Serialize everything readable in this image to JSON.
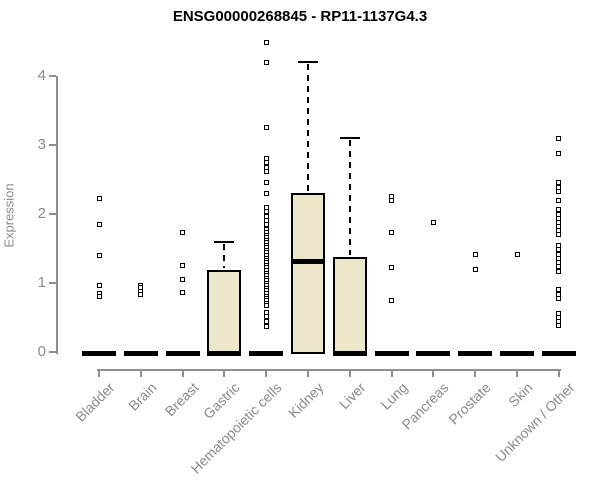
{
  "colors": {
    "background": "#ffffff",
    "box_fill": "#ece6cb",
    "box_border": "#000000",
    "data_ink": "#000000",
    "axis_line": "#8f8f8f",
    "axis_text": "#8a8a8a",
    "title_text": "#000000"
  },
  "chart_data": {
    "type": "boxplot",
    "title": "ENSG00000268845 - RP11-1137G4.3",
    "xlabel": "",
    "ylabel": "Expression",
    "ylim": [
      0,
      4
    ],
    "yticks": [
      0,
      1,
      2,
      3,
      4
    ],
    "grid": false,
    "legend_position": "none",
    "categories": [
      "Bladder",
      "Brain",
      "Breast",
      "Gastric",
      "Hematopoietic cells",
      "Kidney",
      "Liver",
      "Lung",
      "Pancreas",
      "Prostate",
      "Skin",
      "Unknown / Other"
    ],
    "boxes": [
      {
        "category": "Bladder",
        "q1": 0,
        "median": 0,
        "q3": 0,
        "whisker_low": 0,
        "whisker_high": 0,
        "outliers": [
          2.22,
          1.85,
          1.4,
          0.97,
          0.85,
          0.8
        ]
      },
      {
        "category": "Brain",
        "q1": 0,
        "median": 0,
        "q3": 0,
        "whisker_low": 0,
        "whisker_high": 0,
        "outliers": [
          0.97,
          0.93,
          0.88,
          0.84
        ]
      },
      {
        "category": "Breast",
        "q1": 0,
        "median": 0,
        "q3": 0,
        "whisker_low": 0,
        "whisker_high": 0,
        "outliers": [
          1.73,
          1.26,
          1.05,
          0.86
        ]
      },
      {
        "category": "Gastric",
        "q1": 0,
        "median": 0,
        "q3": 1.19,
        "whisker_low": 0,
        "whisker_high": 1.59,
        "outliers": []
      },
      {
        "category": "Hematopoietic cells",
        "q1": 0,
        "median": 0,
        "q3": 0,
        "whisker_low": 0,
        "whisker_high": 0,
        "outliers": [
          4.48,
          4.19,
          3.26,
          2.81,
          2.74,
          2.68,
          2.61,
          2.45,
          2.3,
          2.09,
          2.03,
          1.97,
          1.91,
          1.85,
          1.77,
          1.73,
          1.69,
          1.66,
          1.62,
          1.58,
          1.55,
          1.51,
          1.47,
          1.44,
          1.4,
          1.36,
          1.33,
          1.29,
          1.25,
          1.22,
          1.18,
          1.14,
          1.11,
          1.07,
          1.03,
          1.0,
          0.96,
          0.92,
          0.89,
          0.85,
          0.81,
          0.78,
          0.74,
          0.7,
          0.67,
          0.57,
          0.51,
          0.44,
          0.37
        ]
      },
      {
        "category": "Kidney",
        "q1": 0,
        "median": 1.33,
        "q3": 2.31,
        "whisker_low": 0,
        "whisker_high": 4.2,
        "outliers": []
      },
      {
        "category": "Liver",
        "q1": 0,
        "median": 0,
        "q3": 1.38,
        "whisker_low": 0,
        "whisker_high": 3.1,
        "outliers": []
      },
      {
        "category": "Lung",
        "q1": 0,
        "median": 0,
        "q3": 0,
        "whisker_low": 0,
        "whisker_high": 0,
        "outliers": [
          2.26,
          2.19,
          1.73,
          1.23,
          0.74
        ]
      },
      {
        "category": "Pancreas",
        "q1": 0,
        "median": 0,
        "q3": 0,
        "whisker_low": 0,
        "whisker_high": 0,
        "outliers": [
          1.87
        ]
      },
      {
        "category": "Prostate",
        "q1": 0,
        "median": 0,
        "q3": 0,
        "whisker_low": 0,
        "whisker_high": 0,
        "outliers": [
          1.41,
          1.19
        ]
      },
      {
        "category": "Skin",
        "q1": 0,
        "median": 0,
        "q3": 0,
        "whisker_low": 0,
        "whisker_high": 0,
        "outliers": [
          1.41
        ]
      },
      {
        "category": "Unknown / Other",
        "q1": 0,
        "median": 0,
        "q3": 0,
        "whisker_low": 0,
        "whisker_high": 0,
        "outliers": [
          3.1,
          2.88,
          2.46,
          2.39,
          2.32,
          2.2,
          2.06,
          2.0,
          1.94,
          1.88,
          1.82,
          1.76,
          1.7,
          1.55,
          1.48,
          1.42,
          1.36,
          1.3,
          1.24,
          1.16,
          0.9,
          0.84,
          0.78,
          0.56,
          0.5,
          0.44,
          0.38
        ]
      }
    ]
  }
}
